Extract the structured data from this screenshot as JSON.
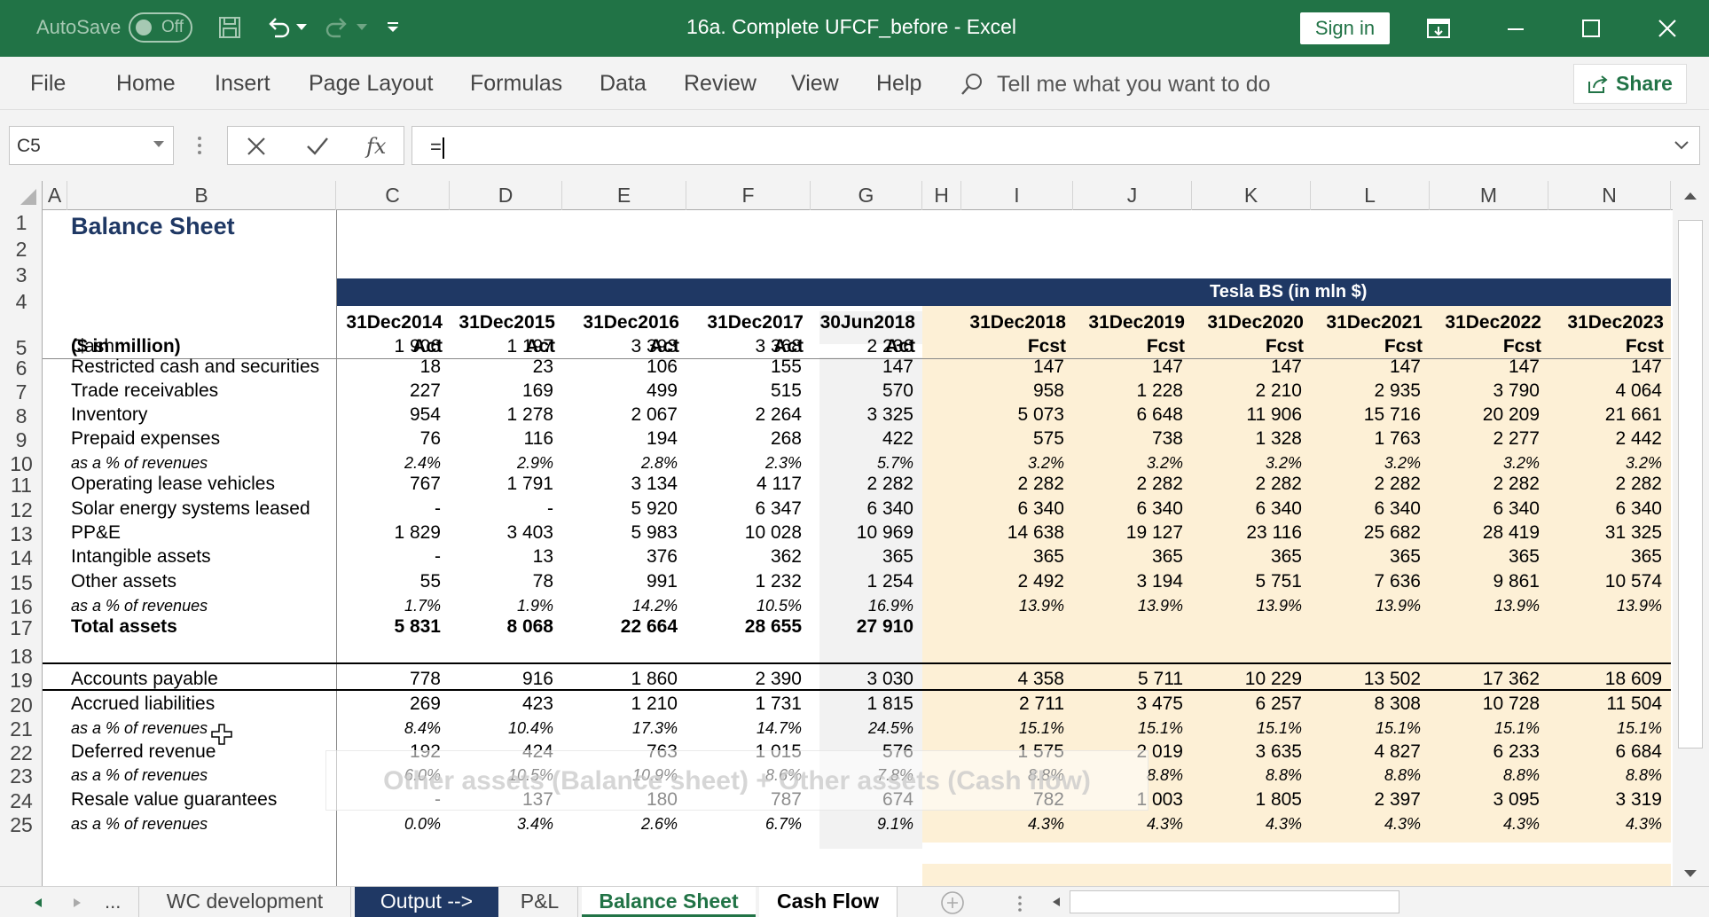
{
  "window": {
    "autosave_label": "AutoSave",
    "autosave_state": "Off",
    "title": "16a. Complete UFCF_before  -  Excel",
    "sign_in": "Sign in"
  },
  "menu": {
    "items": [
      "File",
      "Home",
      "Insert",
      "Page Layout",
      "Formulas",
      "Data",
      "Review",
      "View",
      "Help"
    ],
    "tell_me": "Tell me what you want to do",
    "share": "Share"
  },
  "formula_bar": {
    "name_box": "C5",
    "formula": "=",
    "fx": "fx"
  },
  "columns": [
    "A",
    "B",
    "C",
    "D",
    "E",
    "F",
    "G",
    "H",
    "I",
    "J",
    "K",
    "L",
    "M",
    "N"
  ],
  "rows": [
    "1",
    "2",
    "3",
    "4",
    "5",
    "6",
    "7",
    "8",
    "9",
    "10",
    "11",
    "12",
    "13",
    "14",
    "15",
    "16",
    "17",
    "18",
    "19",
    "20",
    "21",
    "22",
    "23",
    "24",
    "25"
  ],
  "sheet": {
    "title": "Balance Sheet",
    "banner": "Tesla BS (in mln $)",
    "units_label": "($ in million)",
    "dates": [
      "31Dec2014",
      "31Dec2015",
      "31Dec2016",
      "31Dec2017",
      "30Jun2018",
      "31Dec2018",
      "31Dec2019",
      "31Dec2020",
      "31Dec2021",
      "31Dec2022",
      "31Dec2023"
    ],
    "types": [
      "Act",
      "Act",
      "Act",
      "Act",
      "Act",
      "Fcst",
      "Fcst",
      "Fcst",
      "Fcst",
      "Fcst",
      "Fcst"
    ],
    "lines": [
      {
        "row": 5,
        "label": "Cash",
        "values": [
          "1 906",
          "1 197",
          "3 393",
          "3 368",
          "2 236",
          "",
          "",
          "",
          "",
          "",
          ""
        ]
      },
      {
        "row": 6,
        "label": "Restricted cash and securities",
        "values": [
          "18",
          "23",
          "106",
          "155",
          "147",
          "147",
          "147",
          "147",
          "147",
          "147",
          "147"
        ]
      },
      {
        "row": 7,
        "label": "Trade receivables",
        "values": [
          "227",
          "169",
          "499",
          "515",
          "570",
          "958",
          "1 228",
          "2 210",
          "2 935",
          "3 790",
          "4 064"
        ]
      },
      {
        "row": 8,
        "label": "Inventory",
        "values": [
          "954",
          "1 278",
          "2 067",
          "2 264",
          "3 325",
          "5 073",
          "6 648",
          "11 906",
          "15 716",
          "20 209",
          "21 661"
        ]
      },
      {
        "row": 9,
        "label": "Prepaid expenses",
        "values": [
          "76",
          "116",
          "194",
          "268",
          "422",
          "575",
          "738",
          "1 328",
          "1 763",
          "2 277",
          "2 442"
        ]
      },
      {
        "row": 10,
        "label": "as a % of revenues",
        "italic": true,
        "values": [
          "2.4%",
          "2.9%",
          "2.8%",
          "2.3%",
          "5.7%",
          "3.2%",
          "3.2%",
          "3.2%",
          "3.2%",
          "3.2%",
          "3.2%"
        ]
      },
      {
        "row": 11,
        "label": "Operating lease vehicles",
        "values": [
          "767",
          "1 791",
          "3 134",
          "4 117",
          "2 282",
          "2 282",
          "2 282",
          "2 282",
          "2 282",
          "2 282",
          "2 282"
        ]
      },
      {
        "row": 12,
        "label": "Solar energy systems leased",
        "values": [
          "-",
          "-",
          "5 920",
          "6 347",
          "6 340",
          "6 340",
          "6 340",
          "6 340",
          "6 340",
          "6 340",
          "6 340"
        ]
      },
      {
        "row": 13,
        "label": "PP&E",
        "values": [
          "1 829",
          "3 403",
          "5 983",
          "10 028",
          "10 969",
          "14 638",
          "19 127",
          "23 116",
          "25 682",
          "28 419",
          "31 325"
        ]
      },
      {
        "row": 14,
        "label": "Intangible assets",
        "values": [
          "-",
          "13",
          "376",
          "362",
          "365",
          "365",
          "365",
          "365",
          "365",
          "365",
          "365"
        ]
      },
      {
        "row": 15,
        "label": "Other assets",
        "values": [
          "55",
          "78",
          "991",
          "1 232",
          "1 254",
          "2 492",
          "3 194",
          "5 751",
          "7 636",
          "9 861",
          "10 574"
        ]
      },
      {
        "row": 16,
        "label": "as a % of revenues",
        "italic": true,
        "values": [
          "1.7%",
          "1.9%",
          "14.2%",
          "10.5%",
          "16.9%",
          "13.9%",
          "13.9%",
          "13.9%",
          "13.9%",
          "13.9%",
          "13.9%"
        ]
      },
      {
        "row": 17,
        "label": "Total assets",
        "bold": true,
        "values": [
          "5 831",
          "8 068",
          "22 664",
          "28 655",
          "27 910",
          "",
          "",
          "",
          "",
          "",
          ""
        ]
      },
      {
        "row": 19,
        "label": "Accounts payable",
        "values": [
          "778",
          "916",
          "1 860",
          "2 390",
          "3 030",
          "4 358",
          "5 711",
          "10 229",
          "13 502",
          "17 362",
          "18 609"
        ]
      },
      {
        "row": 20,
        "label": "Accrued liabilities",
        "values": [
          "269",
          "423",
          "1 210",
          "1 731",
          "1 815",
          "2 711",
          "3 475",
          "6 257",
          "8 308",
          "10 728",
          "11 504"
        ]
      },
      {
        "row": 21,
        "label": "as a % of revenues",
        "italic": true,
        "values": [
          "8.4%",
          "10.4%",
          "17.3%",
          "14.7%",
          "24.5%",
          "15.1%",
          "15.1%",
          "15.1%",
          "15.1%",
          "15.1%",
          "15.1%"
        ]
      },
      {
        "row": 22,
        "label": "Deferred revenue",
        "values": [
          "192",
          "424",
          "763",
          "1 015",
          "576",
          "1 575",
          "2 019",
          "3 635",
          "4 827",
          "6 233",
          "6 684"
        ]
      },
      {
        "row": 23,
        "label": "as a % of revenues",
        "italic": true,
        "values": [
          "6.0%",
          "10.5%",
          "10.9%",
          "8.6%",
          "7.8%",
          "8.8%",
          "8.8%",
          "8.8%",
          "8.8%",
          "8.8%",
          "8.8%"
        ]
      },
      {
        "row": 24,
        "label": "Resale value guarantees",
        "values": [
          "-",
          "137",
          "180",
          "787",
          "674",
          "782",
          "1 003",
          "1 805",
          "2 397",
          "3 095",
          "3 319"
        ]
      },
      {
        "row": 25,
        "label": "as a % of revenues",
        "italic": true,
        "values": [
          "0.0%",
          "3.4%",
          "2.6%",
          "6.7%",
          "9.1%",
          "4.3%",
          "4.3%",
          "4.3%",
          "4.3%",
          "4.3%",
          "4.3%"
        ]
      }
    ]
  },
  "tooltip": "Other assets (Balance sheet) + Other assets (Cash flow)",
  "tabs": {
    "more": "...",
    "items": [
      {
        "label": "WC development",
        "style": "normal"
      },
      {
        "label": "Output -->",
        "style": "dark"
      },
      {
        "label": "P&L",
        "style": "normal"
      },
      {
        "label": "Balance Sheet",
        "style": "active"
      },
      {
        "label": "Cash Flow",
        "style": "white"
      }
    ]
  },
  "colors": {
    "excel_green": "#217346",
    "navy": "#1f3864",
    "forecast_fill": "#fdf0d6"
  }
}
